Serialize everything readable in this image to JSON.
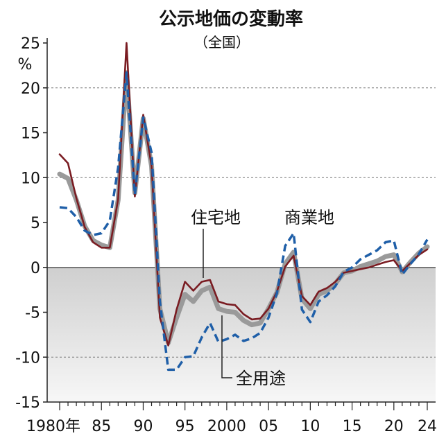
{
  "chart_data": {
    "type": "line",
    "title": "公示地価の変動率",
    "subtitle": "（全国）",
    "ylabel": "%",
    "ylim": [
      -15,
      25
    ],
    "yticks": [
      {
        "v": 25,
        "label": "25"
      },
      {
        "v": 20,
        "label": "20"
      },
      {
        "v": 15,
        "label": "15"
      },
      {
        "v": 10,
        "label": "10"
      },
      {
        "v": 5,
        "label": "5"
      },
      {
        "v": 0,
        "label": "0"
      },
      {
        "v": -5,
        "label": "-5"
      },
      {
        "v": -10,
        "label": "-10"
      },
      {
        "v": -15,
        "label": "-15"
      }
    ],
    "xlim": [
      1980,
      2024
    ],
    "xticks": [
      {
        "v": 1980,
        "label": "1980年"
      },
      {
        "v": 1985,
        "label": "85"
      },
      {
        "v": 1990,
        "label": "90"
      },
      {
        "v": 1995,
        "label": "95"
      },
      {
        "v": 2000,
        "label": "2000"
      },
      {
        "v": 2005,
        "label": "05"
      },
      {
        "v": 2010,
        "label": "10"
      },
      {
        "v": 2015,
        "label": "15"
      },
      {
        "v": 2020,
        "label": "20"
      },
      {
        "v": 2024,
        "label": "24"
      }
    ],
    "x": [
      1980,
      1981,
      1982,
      1983,
      1984,
      1985,
      1986,
      1987,
      1988,
      1989,
      1990,
      1991,
      1992,
      1993,
      1994,
      1995,
      1996,
      1997,
      1998,
      1999,
      2000,
      2001,
      2002,
      2003,
      2004,
      2005,
      2006,
      2007,
      2008,
      2009,
      2010,
      2011,
      2012,
      2013,
      2014,
      2015,
      2016,
      2017,
      2018,
      2019,
      2020,
      2021,
      2022,
      2023,
      2024
    ],
    "series": [
      {
        "name": "全用途",
        "color": "#9a9a9a",
        "style": "solid-thick",
        "values": [
          10.4,
          9.9,
          7.5,
          4.6,
          3.0,
          2.5,
          2.2,
          7.5,
          21.7,
          8.3,
          16.6,
          11.3,
          -4.6,
          -8.4,
          -5.6,
          -3.0,
          -3.8,
          -2.6,
          -2.2,
          -4.6,
          -4.9,
          -5.0,
          -5.9,
          -6.4,
          -6.2,
          -4.6,
          -2.8,
          0.4,
          1.7,
          -3.5,
          -4.6,
          -3.0,
          -2.6,
          -1.8,
          -0.6,
          -0.4,
          0.1,
          0.4,
          0.7,
          1.2,
          1.4,
          -0.5,
          0.6,
          1.6,
          2.3
        ]
      },
      {
        "name": "住宅地",
        "color": "#7a1c22",
        "style": "solid",
        "values": [
          12.6,
          11.6,
          7.7,
          4.5,
          2.8,
          2.2,
          2.2,
          7.6,
          25.0,
          7.9,
          17.0,
          11.3,
          -5.6,
          -8.7,
          -4.7,
          -1.6,
          -2.6,
          -1.6,
          -1.4,
          -3.8,
          -4.1,
          -4.2,
          -5.2,
          -5.8,
          -5.7,
          -4.6,
          -2.7,
          0.1,
          1.3,
          -3.2,
          -4.2,
          -2.7,
          -2.3,
          -1.6,
          -0.6,
          -0.4,
          -0.2,
          0.0,
          0.3,
          0.6,
          0.8,
          -0.4,
          0.5,
          1.4,
          2.0
        ]
      },
      {
        "name": "商業地",
        "color": "#1f5fa8",
        "style": "dashed",
        "values": [
          6.7,
          6.6,
          5.6,
          4.1,
          3.6,
          3.8,
          5.2,
          11.1,
          21.7,
          8.1,
          16.7,
          12.8,
          -3.8,
          -11.4,
          -11.4,
          -10.0,
          -9.9,
          -7.8,
          -6.2,
          -8.3,
          -8.0,
          -7.5,
          -8.2,
          -7.9,
          -7.3,
          -5.6,
          -2.9,
          2.4,
          3.8,
          -4.7,
          -6.1,
          -3.8,
          -3.1,
          -2.1,
          -0.5,
          0.0,
          0.9,
          1.4,
          1.9,
          2.8,
          3.0,
          -0.8,
          0.4,
          1.5,
          3.1
        ]
      }
    ],
    "annotations": [
      {
        "text": "住宅地",
        "series": "住宅地",
        "at": 1998
      },
      {
        "text": "商業地",
        "series": "商業地",
        "at": 2008
      },
      {
        "text": "全用途",
        "series": "全用途",
        "at": 2000
      }
    ],
    "grid": "horizontal-dashed",
    "legend": "none"
  }
}
